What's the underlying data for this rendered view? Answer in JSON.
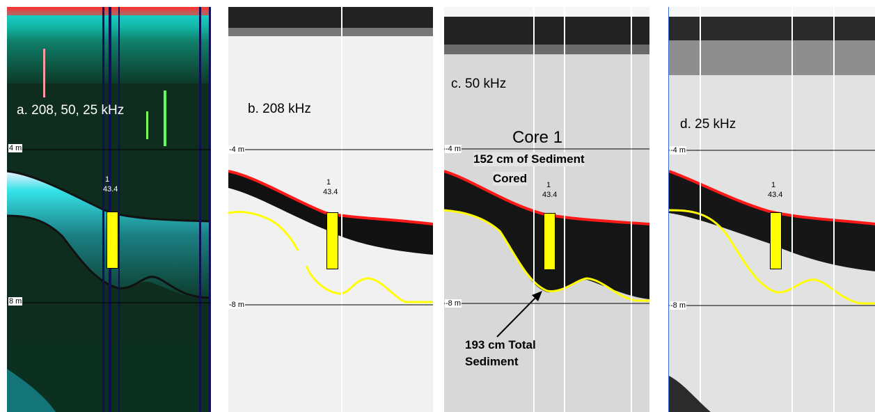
{
  "panels": [
    {
      "id": "a",
      "label": "a. 208, 50, 25 kHz",
      "depth_upper": "4 m",
      "depth_lower": "8 m",
      "site_number": "1",
      "site_value": "43.4"
    },
    {
      "id": "b",
      "label": "b. 208 kHz",
      "depth_upper": "-4 m",
      "depth_lower": "-8 m",
      "site_number": "1",
      "site_value": "43.4"
    },
    {
      "id": "c",
      "label": "c. 50 kHz",
      "depth_upper": "-4 m",
      "depth_lower": "-8 m",
      "site_number": "1",
      "site_value": "43.4"
    },
    {
      "id": "d",
      "label": "d. 25 kHz",
      "depth_upper": "-4 m",
      "depth_lower": "-8 m",
      "site_number": "1",
      "site_value": "43.4"
    }
  ],
  "annotations": {
    "core_title": "Core 1",
    "cored_line1": "152 cm of Sediment",
    "cored_line2": "Cored",
    "total_line1": "193 cm Total",
    "total_line2": "Sediment"
  },
  "colors": {
    "sediment_surface": "#ff1a1a",
    "sediment_base": "#ffff00",
    "core_marker": "#ffff00",
    "depth_line": "#000000"
  }
}
